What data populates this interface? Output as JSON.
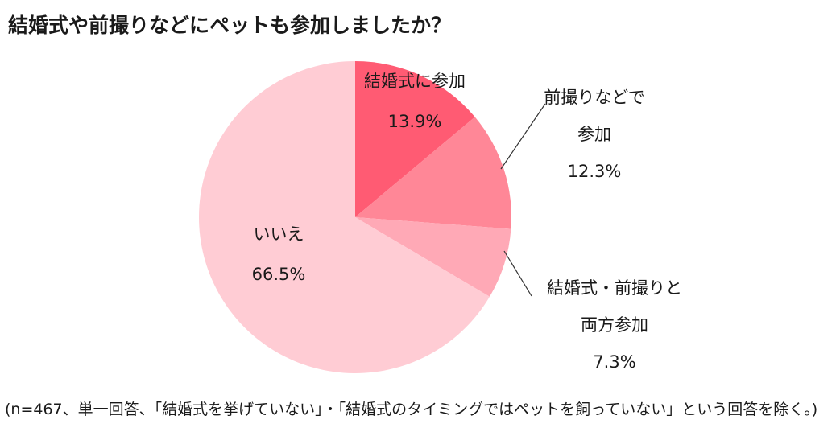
{
  "title": "結婚式や前撮りなどにペットも参加しましたか？",
  "footnote": "(n=467、単一回答、「結婚式を挙げていない」・「結婚式のタイミングではペットを飼っていない」という回答を除く。)",
  "chart_data": {
    "type": "pie",
    "start_angle_deg": 0,
    "direction": "clockwise",
    "series": [
      {
        "label_lines": [
          "結婚式に参加"
        ],
        "value": 13.9,
        "value_label": "13.9%",
        "color": "#ff5b73"
      },
      {
        "label_lines": [
          "前撮りなどで",
          "参加"
        ],
        "value": 12.3,
        "value_label": "12.3%",
        "color": "#ff8797"
      },
      {
        "label_lines": [
          "結婚式・前撮りと",
          "両方参加"
        ],
        "value": 7.3,
        "value_label": "7.3%",
        "color": "#ffa9b6"
      },
      {
        "label_lines": [
          "いいえ"
        ],
        "value": 66.5,
        "value_label": "66.5%",
        "color": "#ffccd4"
      }
    ]
  }
}
